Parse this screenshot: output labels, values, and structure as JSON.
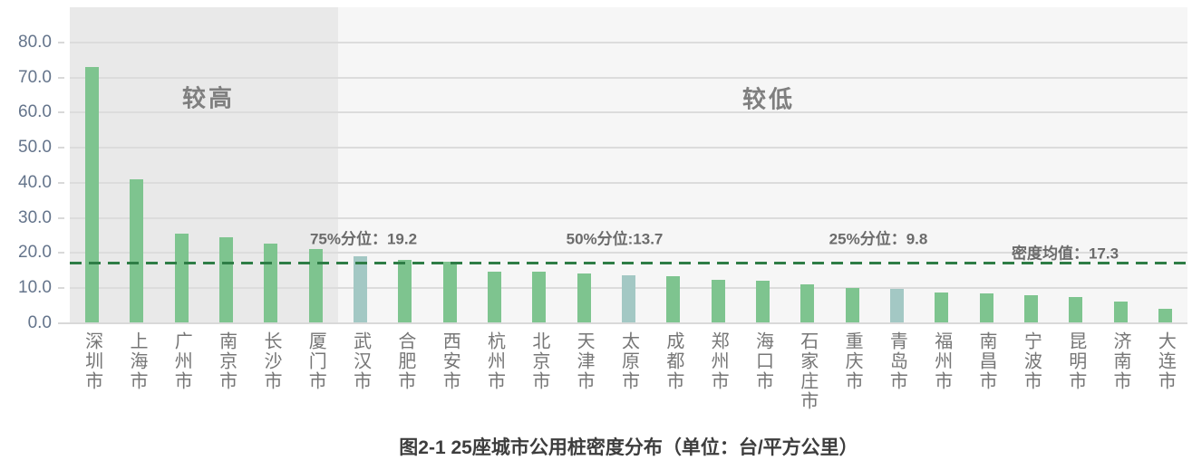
{
  "chart_data": {
    "type": "bar",
    "title": "图2-1 25座城市公用桩密度分布（单位：台/平方公里）",
    "xlabel": "",
    "ylabel": "",
    "unit": "台/平方公里",
    "ylim": [
      0,
      90
    ],
    "yticks": [
      "0.0",
      "10.0",
      "20.0",
      "30.0",
      "40.0",
      "50.0",
      "60.0",
      "70.0",
      "80.0"
    ],
    "grid": true,
    "categories": [
      "深圳市",
      "上海市",
      "广州市",
      "南京市",
      "长沙市",
      "厦门市",
      "武汉市",
      "合肥市",
      "西安市",
      "杭州市",
      "北京市",
      "天津市",
      "太原市",
      "成都市",
      "郑州市",
      "海口市",
      "石家庄市",
      "重庆市",
      "青岛市",
      "福州市",
      "南昌市",
      "宁波市",
      "昆明市",
      "济南市",
      "大连市"
    ],
    "values": [
      73.1,
      41.1,
      25.6,
      24.5,
      22.8,
      21.1,
      19.2,
      18.0,
      17.5,
      14.8,
      14.6,
      14.3,
      13.7,
      13.5,
      12.3,
      12.2,
      11.0,
      10.0,
      9.8,
      8.7,
      8.5,
      7.9,
      7.4,
      6.2,
      4.1
    ],
    "highlight_indices": [
      6,
      12,
      18
    ],
    "mean_line": {
      "label": "密度均值：17.3",
      "value": 17.3
    },
    "annotations": [
      {
        "label": "75%分位：19.2",
        "value": 19.2
      },
      {
        "label": "50%分位:13.7",
        "value": 13.7
      },
      {
        "label": "25%分位：9.8",
        "value": 9.8
      }
    ],
    "regions": [
      {
        "label": "较高",
        "from": 0,
        "to": 6
      },
      {
        "label": "较低",
        "from": 6,
        "to": 25
      }
    ],
    "colors": {
      "bar": "#7ec48f",
      "bar_highlight": "#a3c8c4",
      "mean_line": "#2e7d46",
      "region_high_bg": "#e9e9e9",
      "plot_bg": "#f6f6f6",
      "gridline": "#dcdcdc",
      "ytick_text": "#64748b",
      "xlabel_text": "#767676",
      "annotation_text": "#6b6b6b",
      "title_text": "#3d3d3d"
    }
  }
}
